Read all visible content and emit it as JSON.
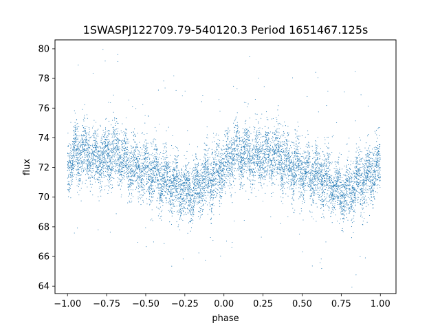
{
  "chart_data": {
    "type": "scatter",
    "title": "1SWASPJ122709.79-540120.3 Period 1651467.125s",
    "xlabel": "phase",
    "ylabel": "flux",
    "xlim": [
      -1.08,
      1.1
    ],
    "ylim": [
      63.5,
      80.6
    ],
    "xticks": [
      -1.0,
      -0.75,
      -0.5,
      -0.25,
      0.0,
      0.25,
      0.5,
      0.75,
      1.0
    ],
    "xtick_labels": [
      "−1.00",
      "−0.75",
      "−0.50",
      "−0.25",
      "0.00",
      "0.25",
      "0.50",
      "0.75",
      "1.00"
    ],
    "yticks": [
      64,
      66,
      68,
      70,
      72,
      74,
      76,
      78,
      80
    ],
    "ytick_labels": [
      "64",
      "66",
      "68",
      "70",
      "72",
      "74",
      "76",
      "78",
      "80"
    ],
    "grid": false,
    "marker_color": "#1f77b4",
    "series": [
      {
        "x_range": [
          -1.0,
          1.0
        ],
        "profile_phase": [
          0.0,
          0.05,
          0.1,
          0.15,
          0.2,
          0.25,
          0.3,
          0.35,
          0.4,
          0.45,
          0.5,
          0.55,
          0.6,
          0.65,
          0.7,
          0.75,
          0.8,
          0.85,
          0.9,
          0.95,
          1.0
        ],
        "profile_flux": [
          72.2,
          72.9,
          73.0,
          72.8,
          72.6,
          72.7,
          72.9,
          72.7,
          72.2,
          71.9,
          71.7,
          71.6,
          71.3,
          71.1,
          70.8,
          70.4,
          70.3,
          71.0,
          71.2,
          71.6,
          72.2
        ],
        "scatter_std": 0.95,
        "point_count": 9000
      }
    ]
  }
}
